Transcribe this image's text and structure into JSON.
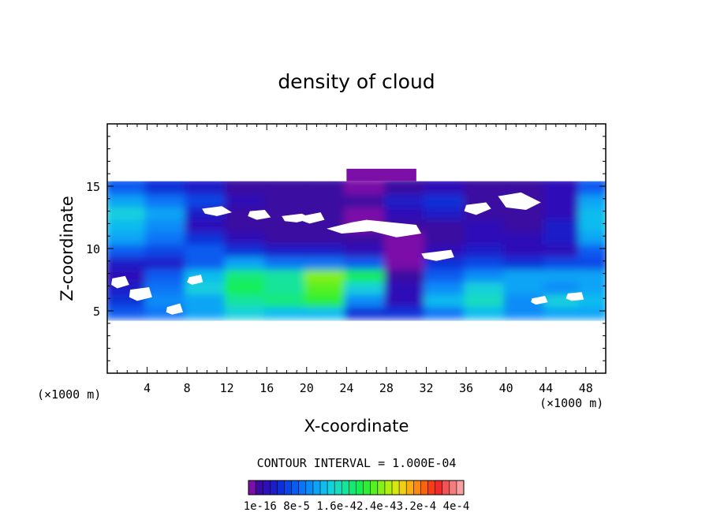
{
  "chart_data": {
    "type": "heatmap",
    "title": "density of cloud",
    "xlabel": "X-coordinate",
    "ylabel": "Z-coordinate",
    "x_unit_left": "(×1000 m)",
    "x_unit_right": "(×1000 m)",
    "xlim": [
      0,
      50
    ],
    "ylim": [
      0,
      20
    ],
    "x_ticks": [
      4,
      8,
      12,
      16,
      20,
      24,
      28,
      32,
      36,
      40,
      44,
      48
    ],
    "y_ticks": [
      5,
      10,
      15
    ],
    "contour_interval_text": "CONTOUR INTERVAL = 1.000E-04",
    "colorbar": {
      "min": 1e-16,
      "max": 0.0004,
      "tick_labels": [
        "1e-16",
        "8e-5",
        "1.6e-4",
        "2.4e-4",
        "3.2e-4",
        "4e-4"
      ],
      "tick_text": "1e-16 8e-5 1.6e-42.4e-43.2e-4 4e-4",
      "colors": [
        "#7b0fa8",
        "#3b0aa0",
        "#2d10b8",
        "#1c1cc8",
        "#0c30d8",
        "#0a46e6",
        "#0a5cf0",
        "#0a74f6",
        "#0a8cf8",
        "#0ca4f6",
        "#10bcee",
        "#14d0dc",
        "#16dcbe",
        "#14e49c",
        "#12ea78",
        "#14ee52",
        "#2cf034",
        "#56f022",
        "#84f018",
        "#b0ee14",
        "#d6e812",
        "#f0d010",
        "#f6ae10",
        "#f88a10",
        "#f86410",
        "#f43e14",
        "#ee2a2a",
        "#f25454",
        "#f47c7c",
        "#f8a0a0"
      ]
    },
    "rows_z": [
      5,
      6,
      7,
      8,
      9,
      10,
      11,
      12,
      13,
      14,
      15
    ],
    "columns_x": [
      2,
      6,
      10,
      14,
      18,
      22,
      26,
      30,
      34,
      38,
      42,
      46,
      49
    ],
    "levels": [
      [
        6,
        7,
        9,
        11,
        10,
        10,
        4,
        4,
        7,
        10,
        8,
        9,
        9
      ],
      [
        4,
        8,
        9,
        13,
        14,
        16,
        8,
        2,
        10,
        12,
        8,
        11,
        10
      ],
      [
        3,
        7,
        11,
        15,
        13,
        17,
        11,
        2,
        8,
        11,
        9,
        8,
        9
      ],
      [
        2,
        6,
        10,
        14,
        13,
        18,
        15,
        1,
        6,
        8,
        9,
        9,
        9
      ],
      [
        3,
        3,
        6,
        9,
        7,
        7,
        6,
        0,
        4,
        5,
        4,
        5,
        5
      ],
      [
        6,
        5,
        6,
        4,
        3,
        3,
        2,
        0,
        2,
        3,
        2,
        2,
        6
      ],
      [
        9,
        7,
        4,
        2,
        1,
        1,
        1,
        0,
        1,
        2,
        2,
        3,
        9
      ],
      [
        10,
        8,
        2,
        1,
        1,
        1,
        0,
        1,
        1,
        2,
        1,
        3,
        10
      ],
      [
        11,
        9,
        3,
        1,
        1,
        1,
        0,
        2,
        3,
        1,
        1,
        2,
        10
      ],
      [
        9,
        7,
        5,
        2,
        1,
        1,
        1,
        3,
        4,
        1,
        1,
        2,
        9
      ],
      [
        6,
        4,
        3,
        1,
        1,
        1,
        0,
        1,
        2,
        1,
        1,
        2,
        6
      ]
    ]
  }
}
